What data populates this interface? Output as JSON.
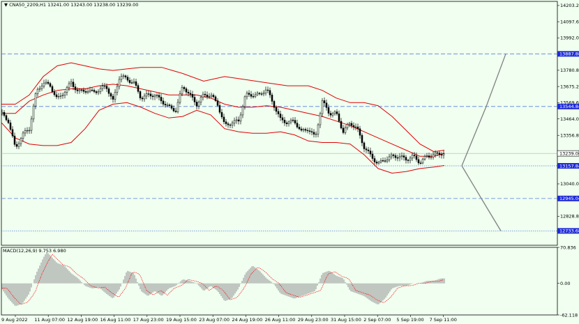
{
  "header": {
    "symbol": "CNA50_2209,H1",
    "ohlc": "13241.00 13243.00 13238.00 13239.00",
    "macd_label": "MACD(12,26,9) 9.753 6.980"
  },
  "colors": {
    "background": "#f0fff0",
    "candle": "#000000",
    "bollinger": "#e00000",
    "hline": "#5a7ed9",
    "label_bg": "#1e2bd6",
    "arrow": "#808080",
    "macd_hist": "#a0a0a0",
    "macd_signal": "#ff0000"
  },
  "chart_data": [
    {
      "type": "candlestick",
      "title": "CNA50_2209,H1",
      "ylim": [
        12640,
        14230
      ],
      "y_ticks": [
        "14203.20",
        "14097.60",
        "13992.00",
        "13780.80",
        "13675.20",
        "13569.60",
        "13464.00",
        "13356.80",
        "13040.00",
        "12828.80"
      ],
      "x_ticks": [
        "9 Aug 2022",
        "11 Aug 07:00",
        "12 Aug 19:00",
        "16 Aug 11:00",
        "17 Aug 23:00",
        "19 Aug 15:00",
        "23 Aug 07:00",
        "24 Aug 19:00",
        "26 Aug 11:00",
        "29 Aug 23:00",
        "31 Aug 15:00",
        "2 Sep 07:00",
        "5 Sep 19:00",
        "7 Sep 11:00"
      ],
      "current_price": "13239.00",
      "levels": [
        {
          "value": 13887.88,
          "label": "13887.88",
          "style": "dashed"
        },
        {
          "value": 13544.84,
          "label": "13544.84",
          "style": "dashed"
        },
        {
          "value": 13157.84,
          "label": "13157.84",
          "style": "dotted"
        },
        {
          "value": 12945.04,
          "label": "12945.04",
          "style": "dashed"
        },
        {
          "value": 12733.68,
          "label": "12733.68",
          "style": "dotted"
        }
      ],
      "price_path": [
        [
          0,
          13500
        ],
        [
          10,
          13450
        ],
        [
          20,
          13270
        ],
        [
          30,
          13360
        ],
        [
          40,
          13400
        ],
        [
          50,
          13640
        ],
        [
          60,
          13700
        ],
        [
          70,
          13680
        ],
        [
          80,
          13590
        ],
        [
          90,
          13640
        ],
        [
          100,
          13700
        ],
        [
          110,
          13640
        ],
        [
          120,
          13650
        ],
        [
          130,
          13640
        ],
        [
          140,
          13650
        ],
        [
          150,
          13680
        ],
        [
          160,
          13580
        ],
        [
          170,
          13750
        ],
        [
          180,
          13720
        ],
        [
          190,
          13700
        ],
        [
          200,
          13600
        ],
        [
          210,
          13620
        ],
        [
          220,
          13620
        ],
        [
          230,
          13580
        ],
        [
          240,
          13540
        ],
        [
          250,
          13520
        ],
        [
          260,
          13680
        ],
        [
          270,
          13620
        ],
        [
          280,
          13560
        ],
        [
          290,
          13620
        ],
        [
          300,
          13620
        ],
        [
          310,
          13560
        ],
        [
          320,
          13420
        ],
        [
          330,
          13440
        ],
        [
          340,
          13450
        ],
        [
          350,
          13620
        ],
        [
          360,
          13620
        ],
        [
          370,
          13620
        ],
        [
          380,
          13660
        ],
        [
          390,
          13560
        ],
        [
          400,
          13460
        ],
        [
          410,
          13440
        ],
        [
          420,
          13450
        ],
        [
          430,
          13380
        ],
        [
          440,
          13400
        ],
        [
          450,
          13340
        ],
        [
          460,
          13580
        ],
        [
          470,
          13500
        ],
        [
          480,
          13500
        ],
        [
          490,
          13380
        ],
        [
          500,
          13440
        ],
        [
          510,
          13400
        ],
        [
          520,
          13280
        ],
        [
          530,
          13220
        ],
        [
          540,
          13170
        ],
        [
          550,
          13200
        ],
        [
          560,
          13220
        ],
        [
          570,
          13220
        ],
        [
          580,
          13200
        ],
        [
          590,
          13220
        ],
        [
          600,
          13180
        ],
        [
          610,
          13220
        ],
        [
          620,
          13230
        ],
        [
          630,
          13239
        ]
      ],
      "bollinger_upper": [
        [
          0,
          13560
        ],
        [
          20,
          13560
        ],
        [
          40,
          13620
        ],
        [
          60,
          13740
        ],
        [
          80,
          13810
        ],
        [
          100,
          13830
        ],
        [
          120,
          13810
        ],
        [
          140,
          13790
        ],
        [
          160,
          13780
        ],
        [
          180,
          13790
        ],
        [
          200,
          13800
        ],
        [
          230,
          13800
        ],
        [
          260,
          13760
        ],
        [
          290,
          13710
        ],
        [
          320,
          13740
        ],
        [
          350,
          13720
        ],
        [
          380,
          13700
        ],
        [
          410,
          13680
        ],
        [
          440,
          13680
        ],
        [
          460,
          13650
        ],
        [
          480,
          13600
        ],
        [
          500,
          13570
        ],
        [
          520,
          13570
        ],
        [
          540,
          13550
        ],
        [
          560,
          13480
        ],
        [
          580,
          13390
        ],
        [
          600,
          13300
        ],
        [
          620,
          13250
        ],
        [
          635,
          13260
        ]
      ],
      "bollinger_mid": [
        [
          0,
          13500
        ],
        [
          20,
          13500
        ],
        [
          40,
          13580
        ],
        [
          60,
          13620
        ],
        [
          80,
          13650
        ],
        [
          100,
          13660
        ],
        [
          120,
          13660
        ],
        [
          140,
          13680
        ],
        [
          160,
          13690
        ],
        [
          180,
          13680
        ],
        [
          200,
          13660
        ],
        [
          220,
          13640
        ],
        [
          240,
          13620
        ],
        [
          260,
          13620
        ],
        [
          280,
          13620
        ],
        [
          300,
          13600
        ],
        [
          320,
          13560
        ],
        [
          340,
          13540
        ],
        [
          360,
          13540
        ],
        [
          380,
          13550
        ],
        [
          400,
          13540
        ],
        [
          420,
          13520
        ],
        [
          440,
          13500
        ],
        [
          460,
          13480
        ],
        [
          480,
          13450
        ],
        [
          500,
          13420
        ],
        [
          520,
          13380
        ],
        [
          540,
          13340
        ],
        [
          560,
          13300
        ],
        [
          580,
          13260
        ],
        [
          600,
          13220
        ],
        [
          620,
          13220
        ],
        [
          635,
          13240
        ]
      ],
      "bollinger_lower": [
        [
          0,
          13440
        ],
        [
          20,
          13340
        ],
        [
          40,
          13300
        ],
        [
          60,
          13290
        ],
        [
          80,
          13290
        ],
        [
          100,
          13310
        ],
        [
          120,
          13400
        ],
        [
          140,
          13520
        ],
        [
          160,
          13560
        ],
        [
          180,
          13570
        ],
        [
          200,
          13540
        ],
        [
          220,
          13500
        ],
        [
          240,
          13470
        ],
        [
          260,
          13480
        ],
        [
          280,
          13520
        ],
        [
          300,
          13490
        ],
        [
          320,
          13400
        ],
        [
          340,
          13380
        ],
        [
          360,
          13370
        ],
        [
          380,
          13370
        ],
        [
          400,
          13380
        ],
        [
          420,
          13360
        ],
        [
          440,
          13320
        ],
        [
          460,
          13310
        ],
        [
          480,
          13310
        ],
        [
          500,
          13300
        ],
        [
          520,
          13230
        ],
        [
          540,
          13140
        ],
        [
          560,
          13110
        ],
        [
          580,
          13120
        ],
        [
          600,
          13140
        ],
        [
          620,
          13150
        ],
        [
          635,
          13160
        ]
      ],
      "projection": [
        {
          "from": [
            662,
            13157.84
          ],
          "to": [
            697,
            13544.84
          ]
        },
        {
          "from": [
            697,
            13544.84
          ],
          "to": [
            725,
            13887.88
          ]
        },
        {
          "from": [
            662,
            13157.84
          ],
          "to": [
            690,
            12945.04
          ]
        },
        {
          "from": [
            690,
            12945.04
          ],
          "to": [
            718,
            12733.68
          ]
        }
      ]
    },
    {
      "type": "bar",
      "title": "MACD(12,26,9) 9.753 6.980",
      "ylim": [
        -62.118,
        70.836
      ],
      "y_ticks": [
        "70.836",
        "0.00",
        "-62.118"
      ],
      "histogram_path": [
        [
          0,
          -10
        ],
        [
          10,
          -30
        ],
        [
          20,
          -45
        ],
        [
          30,
          -40
        ],
        [
          40,
          -20
        ],
        [
          50,
          20
        ],
        [
          60,
          50
        ],
        [
          65,
          62
        ],
        [
          70,
          55
        ],
        [
          80,
          40
        ],
        [
          90,
          35
        ],
        [
          100,
          20
        ],
        [
          110,
          10
        ],
        [
          120,
          -5
        ],
        [
          130,
          -10
        ],
        [
          140,
          -8
        ],
        [
          150,
          -20
        ],
        [
          160,
          -30
        ],
        [
          170,
          -10
        ],
        [
          180,
          25
        ],
        [
          190,
          20
        ],
        [
          200,
          -15
        ],
        [
          210,
          -25
        ],
        [
          220,
          -15
        ],
        [
          230,
          -25
        ],
        [
          240,
          -10
        ],
        [
          250,
          -5
        ],
        [
          260,
          8
        ],
        [
          270,
          5
        ],
        [
          280,
          0
        ],
        [
          290,
          -15
        ],
        [
          300,
          -5
        ],
        [
          310,
          -15
        ],
        [
          320,
          -35
        ],
        [
          330,
          -30
        ],
        [
          340,
          -10
        ],
        [
          350,
          20
        ],
        [
          360,
          35
        ],
        [
          370,
          25
        ],
        [
          380,
          10
        ],
        [
          390,
          0
        ],
        [
          400,
          -20
        ],
        [
          410,
          -25
        ],
        [
          420,
          -30
        ],
        [
          430,
          -25
        ],
        [
          440,
          -20
        ],
        [
          450,
          -15
        ],
        [
          460,
          20
        ],
        [
          470,
          25
        ],
        [
          480,
          15
        ],
        [
          490,
          10
        ],
        [
          500,
          -15
        ],
        [
          510,
          -20
        ],
        [
          520,
          -25
        ],
        [
          530,
          -35
        ],
        [
          540,
          -42
        ],
        [
          550,
          -30
        ],
        [
          560,
          -10
        ],
        [
          570,
          -5
        ],
        [
          580,
          -5
        ],
        [
          590,
          0
        ],
        [
          600,
          0
        ],
        [
          610,
          5
        ],
        [
          620,
          5
        ],
        [
          630,
          9.75
        ]
      ]
    }
  ]
}
